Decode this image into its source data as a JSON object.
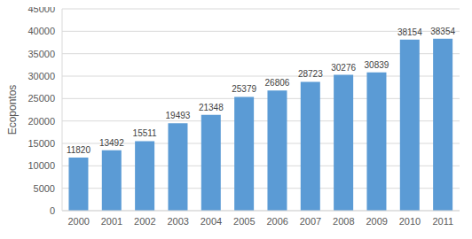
{
  "chart_data": {
    "type": "bar",
    "ylabel": "Ecopontos",
    "categories": [
      "2000",
      "2001",
      "2002",
      "2003",
      "2004",
      "2005",
      "2006",
      "2007",
      "2008",
      "2009",
      "2010",
      "2011"
    ],
    "values": [
      11820,
      13492,
      15511,
      19493,
      21348,
      25379,
      26806,
      28723,
      30276,
      30839,
      38154,
      38354
    ],
    "color": "#5b9bd5",
    "ylim": [
      0,
      45000
    ],
    "yticks": [
      0,
      5000,
      10000,
      15000,
      20000,
      25000,
      30000,
      35000,
      40000,
      45000
    ],
    "grid": true,
    "data_labels": true
  }
}
